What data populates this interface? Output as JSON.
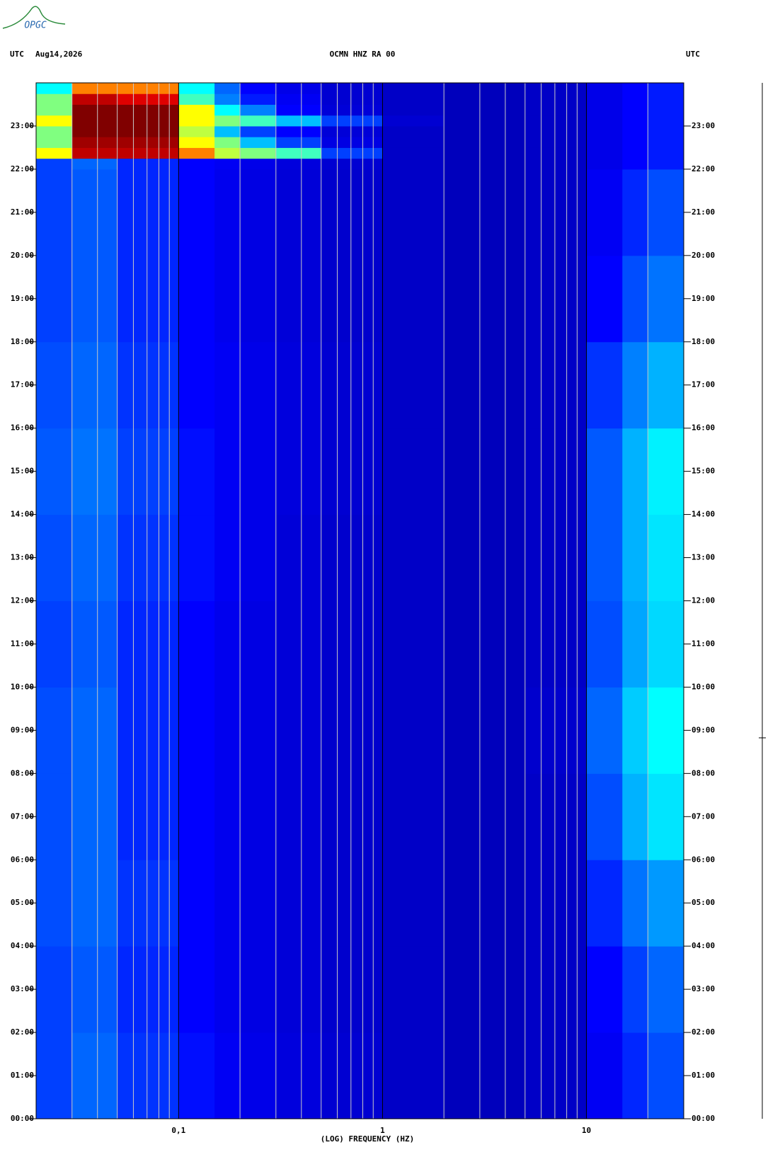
{
  "chart_data": {
    "type": "heatmap",
    "logo": "OPGC",
    "time_zone": "UTC",
    "date": "Aug14,2026",
    "title": "OCMN HNZ RA 00",
    "time_zone_right": "UTC",
    "xlabel": "(LOG) FREQUENCY (HZ)",
    "xlog": true,
    "xlim": [
      0.02,
      30
    ],
    "xticks": [
      {
        "value": 0.1,
        "label": "0,1"
      },
      1,
      10
    ],
    "xminorticks": [
      0.03,
      0.04,
      0.05,
      0.06,
      0.07,
      0.08,
      0.09,
      0.2,
      0.3,
      0.4,
      0.5,
      0.6,
      0.7,
      0.8,
      0.9,
      2,
      3,
      4,
      5,
      6,
      7,
      8,
      9,
      20
    ],
    "ylim": [
      0,
      24
    ],
    "yticks": [
      {
        "value": 0,
        "label": "00:00"
      },
      {
        "value": 1,
        "label": "01:00"
      },
      {
        "value": 2,
        "label": "02:00"
      },
      {
        "value": 3,
        "label": "03:00"
      },
      {
        "value": 4,
        "label": "04:00"
      },
      {
        "value": 5,
        "label": "05:00"
      },
      {
        "value": 6,
        "label": "06:00"
      },
      {
        "value": 7,
        "label": "07:00"
      },
      {
        "value": 8,
        "label": "08:00"
      },
      {
        "value": 9,
        "label": "09:00"
      },
      {
        "value": 10,
        "label": "10:00"
      },
      {
        "value": 11,
        "label": "11:00"
      },
      {
        "value": 12,
        "label": "12:00"
      },
      {
        "value": 13,
        "label": "13:00"
      },
      {
        "value": 14,
        "label": "14:00"
      },
      {
        "value": 15,
        "label": "15:00"
      },
      {
        "value": 16,
        "label": "16:00"
      },
      {
        "value": 17,
        "label": "17:00"
      },
      {
        "value": 18,
        "label": "18:00"
      },
      {
        "value": 19,
        "label": "19:00"
      },
      {
        "value": 20,
        "label": "20:00"
      },
      {
        "value": 21,
        "label": "21:00"
      },
      {
        "value": 22,
        "label": "22:00"
      },
      {
        "value": 23,
        "label": "23:00"
      }
    ],
    "x_edges": [
      0.02,
      0.03,
      0.05,
      0.07,
      0.1,
      0.15,
      0.2,
      0.3,
      0.5,
      1,
      2,
      5,
      10,
      15,
      20,
      30
    ],
    "y_edges": [
      0,
      2,
      4,
      6,
      8,
      10,
      12,
      14,
      16,
      18,
      20,
      22,
      22.25,
      22.5,
      22.75,
      23,
      23.25,
      23.5,
      23.75,
      24
    ],
    "zlim": [
      0,
      10
    ],
    "colormap": [
      "#00008f",
      "#0000ff",
      "#00ffff",
      "#ffff00",
      "#ff0000",
      "#800000"
    ],
    "z": [
      [
        2.5,
        2.8,
        2.4,
        2.4,
        2.1,
        1.8,
        1.6,
        1.4,
        1.2,
        1,
        0.8,
        1,
        1.8,
        2.3,
        2.6
      ],
      [
        2.5,
        2.7,
        2.3,
        2.3,
        2,
        1.7,
        1.5,
        1.3,
        1.1,
        1,
        0.8,
        1,
        2,
        2.5,
        2.8
      ],
      [
        2.6,
        2.8,
        2.4,
        2.4,
        2,
        1.7,
        1.5,
        1.3,
        1.1,
        1,
        0.8,
        1,
        2.3,
        2.9,
        3.2
      ],
      [
        2.6,
        2.8,
        2.3,
        2.3,
        2,
        1.7,
        1.5,
        1.3,
        1.1,
        1,
        0.8,
        1,
        2.6,
        3.4,
        3.8
      ],
      [
        2.6,
        2.8,
        2.3,
        2.3,
        2,
        1.7,
        1.5,
        1.3,
        1.1,
        1,
        0.8,
        1.1,
        2.8,
        3.6,
        4
      ],
      [
        2.5,
        2.7,
        2.3,
        2.3,
        2,
        1.7,
        1.5,
        1.3,
        1.1,
        1,
        0.8,
        1,
        2.6,
        3.3,
        3.7
      ],
      [
        2.6,
        2.8,
        2.4,
        2.4,
        2.1,
        1.8,
        1.6,
        1.3,
        1.1,
        1,
        0.8,
        1,
        2.7,
        3.4,
        3.8
      ],
      [
        2.7,
        2.9,
        2.5,
        2.5,
        2.1,
        1.8,
        1.6,
        1.4,
        1.2,
        1,
        0.8,
        1,
        2.7,
        3.4,
        3.9
      ],
      [
        2.6,
        2.8,
        2.4,
        2.4,
        2,
        1.8,
        1.6,
        1.4,
        1.2,
        1,
        0.8,
        1,
        2.4,
        3,
        3.4
      ],
      [
        2.5,
        2.7,
        2.3,
        2.3,
        2,
        1.7,
        1.5,
        1.3,
        1.1,
        1,
        0.8,
        1,
        2,
        2.6,
        2.9
      ],
      [
        2.5,
        2.7,
        2.3,
        2.3,
        2,
        1.7,
        1.5,
        1.3,
        1.1,
        1,
        0.8,
        1,
        1.8,
        2.3,
        2.6
      ],
      [
        2.5,
        2.8,
        2.3,
        2.3,
        2,
        1.8,
        1.6,
        1.4,
        1.2,
        1,
        0.8,
        1,
        1.6,
        2,
        2.2
      ],
      [
        6,
        9,
        9,
        9,
        7,
        5.5,
        5,
        4.5,
        2.5,
        1,
        0.8,
        1,
        1.6,
        2,
        2.2
      ],
      [
        5,
        9.5,
        9.5,
        9.5,
        6,
        5,
        3.5,
        2.5,
        1.5,
        1,
        0.8,
        1,
        1.6,
        2,
        2.2
      ],
      [
        5,
        10,
        10,
        10,
        5.5,
        3.5,
        2.5,
        2,
        1.3,
        1,
        0.8,
        1,
        1.6,
        2,
        2.2
      ],
      [
        6,
        10,
        10,
        10,
        6,
        5,
        4.5,
        3.5,
        2.5,
        1.2,
        0.8,
        1,
        1.6,
        2,
        2.2
      ],
      [
        5,
        10,
        10,
        10,
        6,
        4,
        3,
        2,
        1.3,
        1,
        0.8,
        1,
        1.6,
        2,
        2.2
      ],
      [
        5,
        9,
        8.5,
        8.5,
        4.5,
        3,
        2.2,
        1.8,
        1.2,
        1,
        0.8,
        1,
        1.6,
        2,
        2.2
      ],
      [
        4,
        7,
        7,
        7,
        4,
        2.8,
        2,
        1.6,
        1.2,
        1,
        0.8,
        1,
        1.6,
        2,
        2.2
      ]
    ]
  }
}
